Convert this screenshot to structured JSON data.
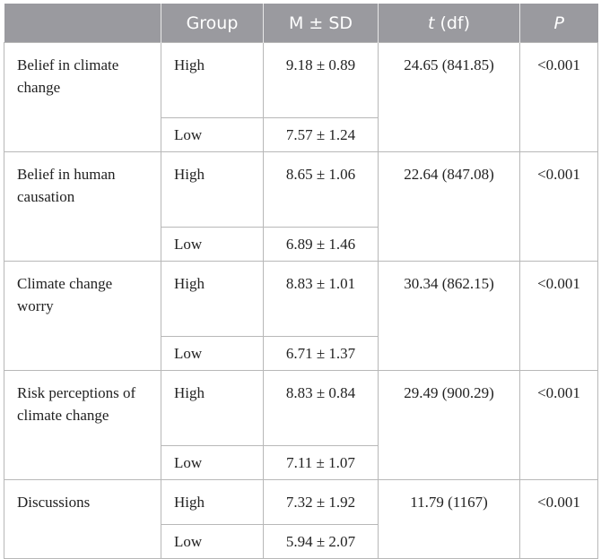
{
  "headers": {
    "variable": "",
    "group": "Group",
    "msd": "M ± SD",
    "t_italic": "t",
    "t_rest": " (df)",
    "p": "P"
  },
  "rows": [
    {
      "variable": "Belief in climate change",
      "high": {
        "group": "High",
        "msd": "9.18 ± 0.89",
        "t": "24.65 (841.85)",
        "p": "<0.001"
      },
      "low": {
        "group": "Low",
        "msd": "7.57 ± 1.24"
      }
    },
    {
      "variable": "Belief in human causation",
      "high": {
        "group": "High",
        "msd": "8.65 ± 1.06",
        "t": "22.64 (847.08)",
        "p": "<0.001"
      },
      "low": {
        "group": "Low",
        "msd": "6.89 ± 1.46"
      }
    },
    {
      "variable": "Climate change worry",
      "high": {
        "group": "High",
        "msd": "8.83 ± 1.01",
        "t": "30.34 (862.15)",
        "p": "<0.001"
      },
      "low": {
        "group": "Low",
        "msd": "6.71 ± 1.37"
      }
    },
    {
      "variable": "Risk perceptions of climate change",
      "high": {
        "group": "High",
        "msd": "8.83 ± 0.84",
        "t": "29.49 (900.29)",
        "p": "<0.001"
      },
      "low": {
        "group": "Low",
        "msd": "7.11 ± 1.07"
      }
    },
    {
      "variable": "Discussions",
      "high": {
        "group": "High",
        "msd": "7.32 ± 1.92",
        "t": "11.79 (1167)",
        "p": "<0.001"
      },
      "low": {
        "group": "Low",
        "msd": "5.94 ± 2.07"
      }
    }
  ]
}
